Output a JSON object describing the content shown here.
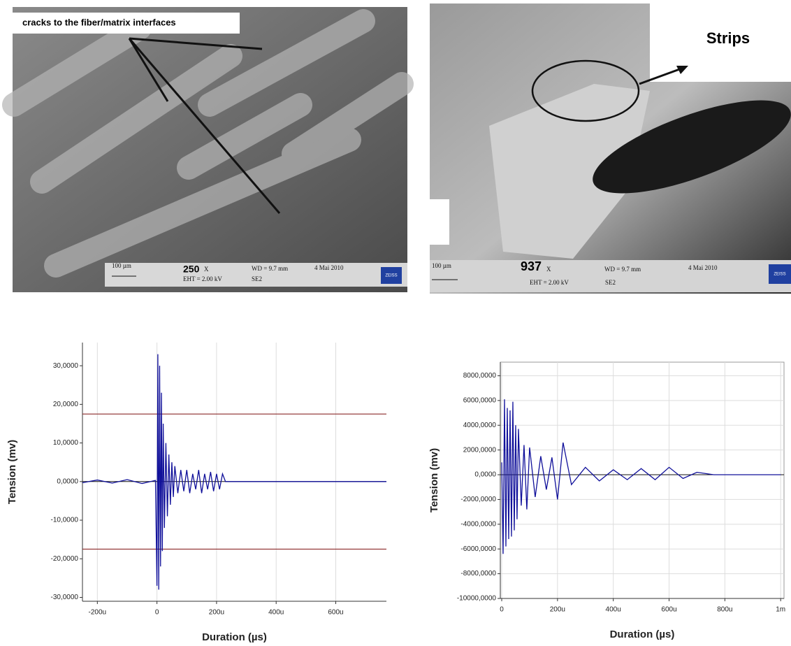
{
  "images": [
    {
      "callout": "cracks to the fiber/matrix interfaces",
      "magnification": "250",
      "mag_unit": "X",
      "scale": "100 µm",
      "wd": "WD = 9.7 mm",
      "date": "4 Mai 2010",
      "eht": "EHT = 2.00 kV",
      "detector": "SE2",
      "brand": "ZEISS"
    },
    {
      "callout": "Strips",
      "magnification": "937",
      "mag_unit": "X",
      "scale": "100 µm",
      "wd": "WD = 9.7 mm",
      "date": "4 Mai 2010",
      "eht": "EHT = 2.00 kV",
      "detector": "SE2",
      "brand": "ZEISS"
    }
  ],
  "chart_data": [
    {
      "type": "line",
      "xlabel": "Duration (µs)",
      "ylabel": "Tension (mv)",
      "color": "#10109a",
      "grid": "x",
      "threshold_color": "#8b2a2a",
      "thresholds": [
        17.5,
        -17.5
      ],
      "xlim": [
        -250,
        770
      ],
      "ylim": [
        -31,
        36
      ],
      "xticks": [
        {
          "value": -200,
          "label": "-200u"
        },
        0,
        {
          "value": 200,
          "label": "200u"
        },
        {
          "value": 400,
          "label": "400u"
        },
        {
          "value": 600,
          "label": "600u"
        }
      ],
      "yticks": [
        {
          "value": 30,
          "label": "30,0000"
        },
        {
          "value": 20,
          "label": "20,0000"
        },
        {
          "value": 10,
          "label": "10,0000"
        },
        {
          "value": 0,
          "label": "0,0000"
        },
        {
          "value": -10,
          "label": "-10,0000"
        },
        {
          "value": -20,
          "label": "-20,0000"
        },
        {
          "value": -30,
          "label": "-30,0000"
        }
      ],
      "x": [
        -250,
        -200,
        -150,
        -100,
        -50,
        -5,
        0,
        3,
        6,
        9,
        12,
        15,
        18,
        21,
        25,
        30,
        35,
        40,
        45,
        50,
        55,
        60,
        70,
        80,
        90,
        100,
        110,
        120,
        130,
        140,
        150,
        160,
        170,
        180,
        190,
        200,
        210,
        220,
        230,
        300,
        400,
        500,
        600,
        700,
        770
      ],
      "values": [
        -0.3,
        0.4,
        -0.4,
        0.5,
        -0.5,
        0.3,
        -27,
        33,
        -28,
        30,
        -22,
        23,
        -18,
        15,
        -12,
        10,
        -9,
        7,
        -6,
        5,
        -4,
        4,
        -3,
        3,
        -2.5,
        3,
        -3,
        2,
        -2,
        3,
        -3,
        2,
        -2,
        2.5,
        -2.5,
        2,
        -2,
        2,
        0,
        0,
        0,
        0,
        0,
        0,
        0
      ]
    },
    {
      "type": "line",
      "xlabel": "Duration (µs)",
      "ylabel": "Tension (mv)",
      "color": "#10109a",
      "grid": "both",
      "xlim": [
        -5,
        1012
      ],
      "ylim": [
        -10000,
        9100
      ],
      "xticks": [
        0,
        {
          "value": 200,
          "label": "200u"
        },
        {
          "value": 400,
          "label": "400u"
        },
        {
          "value": 600,
          "label": "600u"
        },
        {
          "value": 800,
          "label": "800u"
        },
        {
          "value": 1000,
          "label": "1m"
        }
      ],
      "yticks": [
        {
          "value": 8000,
          "label": "8000,0000"
        },
        {
          "value": 6000,
          "label": "6000,0000"
        },
        {
          "value": 4000,
          "label": "4000,0000"
        },
        {
          "value": 2000,
          "label": "2000,0000"
        },
        {
          "value": 0,
          "label": "0,0000"
        },
        {
          "value": -2000,
          "label": "-2000,0000"
        },
        {
          "value": -4000,
          "label": "-4000,0000"
        },
        {
          "value": -6000,
          "label": "-6000,0000"
        },
        {
          "value": -8000,
          "label": "-8000,0000"
        },
        {
          "value": -10000,
          "label": "-10000,0000"
        }
      ],
      "x": [
        0,
        5,
        10,
        15,
        20,
        25,
        30,
        35,
        40,
        45,
        50,
        55,
        60,
        70,
        80,
        90,
        100,
        120,
        140,
        160,
        180,
        200,
        220,
        250,
        300,
        350,
        400,
        450,
        500,
        550,
        600,
        650,
        700,
        760,
        1000
      ],
      "values": [
        1000,
        -6400,
        6100,
        -5800,
        5400,
        -5200,
        5200,
        -5000,
        5900,
        -4500,
        4000,
        -3600,
        3700,
        -2500,
        2400,
        -2800,
        2200,
        -1800,
        1500,
        -1200,
        1400,
        -2000,
        2600,
        -800,
        600,
        -500,
        400,
        -400,
        500,
        -400,
        600,
        -300,
        200,
        0,
        0
      ]
    }
  ]
}
